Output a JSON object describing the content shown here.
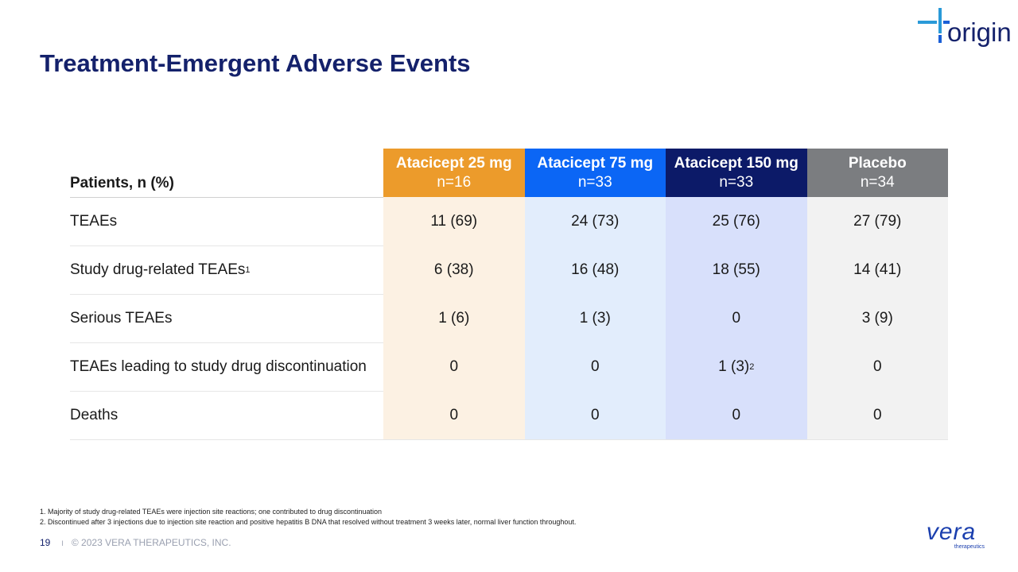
{
  "header": {
    "title": "Treatment-Emergent Adverse Events",
    "logo": "origin"
  },
  "table": {
    "corner": "Patients, n (%)",
    "columns": [
      {
        "name": "Atacicept 25 mg",
        "n": "n=16",
        "color": "#ec9b2b",
        "cell_color": "#fcf1e3"
      },
      {
        "name": "Atacicept 75 mg",
        "n": "n=33",
        "color": "#0b66f5",
        "cell_color": "#e2edfc"
      },
      {
        "name": "Atacicept 150 mg",
        "n": "n=33",
        "color": "#0c1a68",
        "cell_color": "#d8e0fb"
      },
      {
        "name": "Placebo",
        "n": "n=34",
        "color": "#7b7d80",
        "cell_color": "#f2f2f2"
      }
    ],
    "rows": [
      {
        "label": "TEAEs",
        "cells": [
          "11 (69)",
          "24 (73)",
          "25 (76)",
          "27 (79)"
        ]
      },
      {
        "label": "Study drug-related TEAEs",
        "label_sup": "1",
        "cells": [
          "6 (38)",
          "16 (48)",
          "18 (55)",
          "14 (41)"
        ]
      },
      {
        "label": "Serious TEAEs",
        "cells": [
          "1 (6)",
          "1 (3)",
          "0",
          "3 (9)"
        ]
      },
      {
        "label": "TEAEs leading to study drug discontinuation",
        "cells": [
          "0",
          "0",
          {
            "text": "1 (3)",
            "sup": "2"
          },
          "0"
        ]
      },
      {
        "label": "Deaths",
        "cells": [
          "0",
          "0",
          "0",
          "0"
        ]
      }
    ]
  },
  "footnotes": [
    "1. Majority of study drug-related TEAEs were injection site reactions; one contributed to drug discontinuation",
    "2. Discontinued after 3 injections due to injection site reaction and positive hepatitis B DNA that resolved without treatment 3 weeks later, normal liver function throughout."
  ],
  "footer": {
    "page": "19",
    "separator": "I",
    "copyright": "© 2023 VERA THERAPEUTICS, INC.",
    "brand": "vera",
    "brand_sub": "therapeutics"
  }
}
